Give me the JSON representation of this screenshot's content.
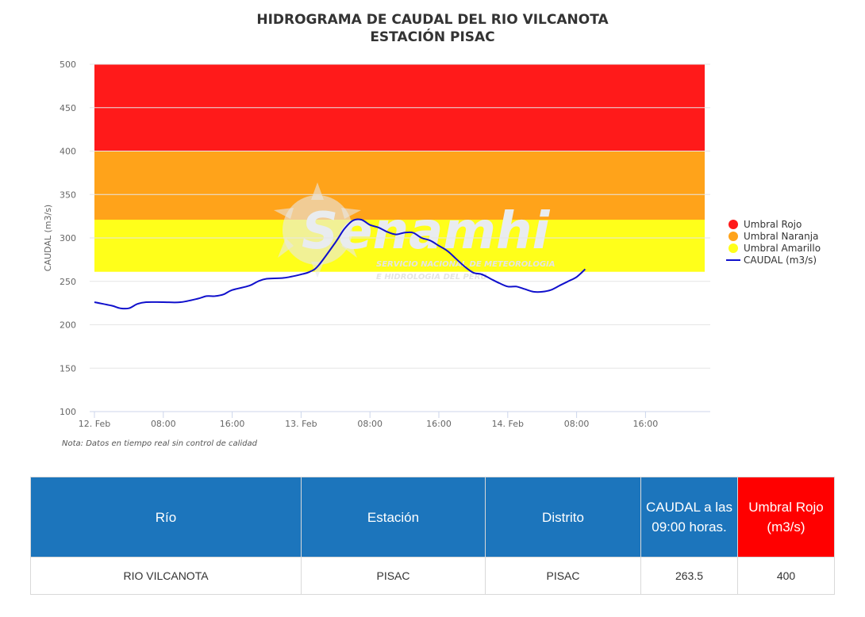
{
  "chart_data": {
    "type": "line",
    "title": "HIDROGRAMA DE CAUDAL DEL RIO VILCANOTA",
    "subtitle": "ESTACIÓN PISAC",
    "ylabel": "CAUDAL (m3/s)",
    "ylim": [
      100,
      500
    ],
    "yticks": [
      "100",
      "150",
      "200",
      "250",
      "300",
      "350",
      "400",
      "450",
      "500"
    ],
    "xlim": [
      "2025-02-12 00:00",
      "2025-02-14 20:00"
    ],
    "xticks": [
      {
        "t": "2025-02-12 00:00",
        "label": "12. Feb"
      },
      {
        "t": "2025-02-12 08:00",
        "label": "08:00"
      },
      {
        "t": "2025-02-12 16:00",
        "label": "16:00"
      },
      {
        "t": "2025-02-13 00:00",
        "label": "13. Feb"
      },
      {
        "t": "2025-02-13 08:00",
        "label": "08:00"
      },
      {
        "t": "2025-02-13 16:00",
        "label": "16:00"
      },
      {
        "t": "2025-02-14 00:00",
        "label": "14. Feb"
      },
      {
        "t": "2025-02-14 08:00",
        "label": "08:00"
      },
      {
        "t": "2025-02-14 16:00",
        "label": "16:00"
      }
    ],
    "grid": true,
    "legend_position": "right",
    "bands": [
      {
        "name": "Umbral Rojo",
        "from": 400,
        "to": 500,
        "color": "#ff1a1a"
      },
      {
        "name": "Umbral Naranja",
        "from": 321,
        "to": 400,
        "color": "#ffa31a"
      },
      {
        "name": "Umbral Amarillo",
        "from": 261,
        "to": 321,
        "color": "#ffff1a"
      }
    ],
    "series": [
      {
        "name": "CAUDAL (m3/s)",
        "color": "#1010cc",
        "x": [
          "2025-02-12 00:00",
          "2025-02-12 02:00",
          "2025-02-12 03:00",
          "2025-02-12 04:00",
          "2025-02-12 05:00",
          "2025-02-12 06:00",
          "2025-02-12 08:00",
          "2025-02-12 10:00",
          "2025-02-12 12:00",
          "2025-02-12 13:00",
          "2025-02-12 14:00",
          "2025-02-12 15:00",
          "2025-02-12 16:00",
          "2025-02-12 18:00",
          "2025-02-12 19:00",
          "2025-02-12 20:00",
          "2025-02-12 22:00",
          "2025-02-13 00:00",
          "2025-02-13 01:00",
          "2025-02-13 02:00",
          "2025-02-13 04:00",
          "2025-02-13 05:00",
          "2025-02-13 06:00",
          "2025-02-13 07:00",
          "2025-02-13 08:00",
          "2025-02-13 09:00",
          "2025-02-13 10:00",
          "2025-02-13 11:00",
          "2025-02-13 12:00",
          "2025-02-13 13:00",
          "2025-02-13 14:00",
          "2025-02-13 15:00",
          "2025-02-13 16:00",
          "2025-02-13 17:00",
          "2025-02-13 18:00",
          "2025-02-13 19:00",
          "2025-02-13 20:00",
          "2025-02-13 21:00",
          "2025-02-13 22:00",
          "2025-02-13 23:00",
          "2025-02-14 00:00",
          "2025-02-14 01:00",
          "2025-02-14 02:00",
          "2025-02-14 03:00",
          "2025-02-14 04:00",
          "2025-02-14 05:00",
          "2025-02-14 06:00",
          "2025-02-14 07:00",
          "2025-02-14 08:00",
          "2025-02-14 09:00"
        ],
        "y": [
          226,
          222,
          219,
          219,
          224,
          226,
          226,
          226,
          230,
          233,
          233,
          235,
          240,
          245,
          250,
          253,
          254,
          258,
          261,
          268,
          295,
          310,
          320,
          321,
          315,
          312,
          307,
          304,
          306,
          306,
          300,
          297,
          291,
          285,
          276,
          267,
          260,
          258,
          253,
          248,
          244,
          244,
          241,
          238,
          238,
          240,
          245,
          250,
          255,
          264
        ]
      }
    ]
  },
  "note": "Nota: Datos en tiempo real sin control de calidad",
  "watermark": {
    "name": "Senamhi",
    "line1": "SERVICIO NACIONAL DE METEOROLOGIA",
    "line2": "E HIDROLOGIA DEL PERU"
  },
  "table": {
    "headers": [
      "Río",
      "Estación",
      "Distrito",
      "CAUDAL a las 09:00 horas.",
      "Umbral Rojo (m3/s)"
    ],
    "row": [
      "RIO VILCANOTA",
      "PISAC",
      "PISAC",
      "263.5",
      "400"
    ]
  },
  "colors": {
    "header_blue": "#1c75bc",
    "header_red": "#ff0000"
  }
}
